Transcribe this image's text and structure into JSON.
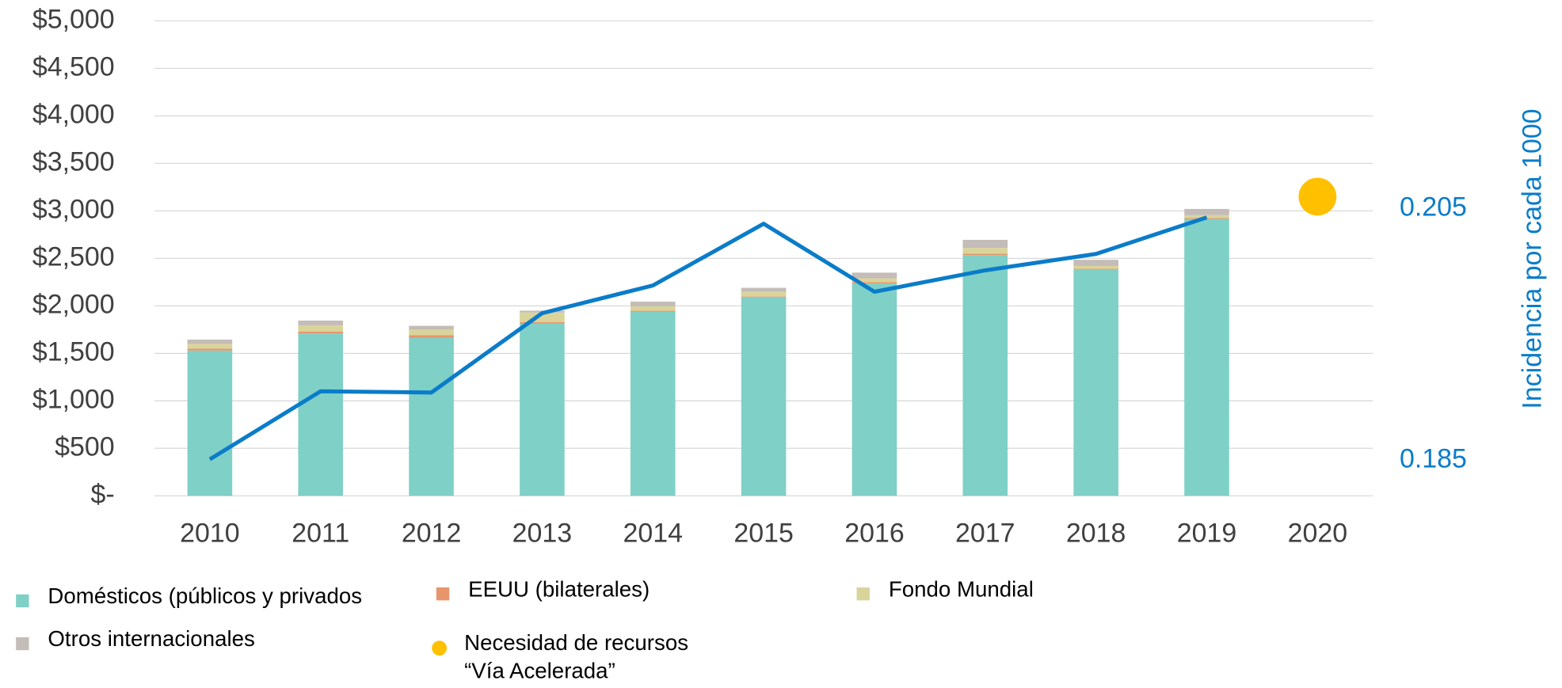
{
  "chart_data": {
    "type": "bar",
    "stacked": true,
    "categories": [
      "2010",
      "2011",
      "2012",
      "2013",
      "2014",
      "2015",
      "2016",
      "2017",
      "2018",
      "2019",
      "2020"
    ],
    "series": [
      {
        "name": "Domésticos (públicos y privados",
        "color": "#7fd0c7",
        "values": [
          1530,
          1710,
          1665,
          1815,
          1940,
          2095,
          2235,
          2535,
          2380,
          2915,
          null
        ]
      },
      {
        "name": "EEUU (bilaterales)",
        "color": "#e8956b",
        "values": [
          20,
          20,
          25,
          15,
          10,
          5,
          15,
          15,
          10,
          10,
          null
        ]
      },
      {
        "name": "Fondo Mundial",
        "color": "#d9d49a",
        "values": [
          50,
          65,
          60,
          100,
          45,
          50,
          40,
          60,
          30,
          30,
          null
        ]
      },
      {
        "name": "Otros internacionales",
        "color": "#c4bcb8",
        "values": [
          45,
          50,
          40,
          20,
          50,
          40,
          60,
          85,
          65,
          65,
          null
        ]
      }
    ],
    "need": {
      "name": "Necesidad de recursos “Vía Acelerada”",
      "color": "#ffc000",
      "values": [
        null,
        null,
        null,
        null,
        null,
        null,
        null,
        null,
        null,
        null,
        3150
      ]
    },
    "line": {
      "type": "line",
      "axis": "y2",
      "color": "#0a7cc9",
      "values": [
        0.1851,
        0.1905,
        0.1904,
        0.1967,
        0.1989,
        0.2038,
        0.1984,
        0.2001,
        0.2014,
        0.2043,
        null
      ]
    },
    "ylim": [
      0,
      5000
    ],
    "yticks": [
      {
        "value": 0,
        "label": "$-"
      },
      {
        "value": 500,
        "label": "$500"
      },
      {
        "value": 1000,
        "label": "$1,000"
      },
      {
        "value": 1500,
        "label": "$1,500"
      },
      {
        "value": 2000,
        "label": "$2,000"
      },
      {
        "value": 2500,
        "label": "$2,500"
      },
      {
        "value": 3000,
        "label": "$3,000"
      },
      {
        "value": 3500,
        "label": "$3,500"
      },
      {
        "value": 4000,
        "label": "$4,000"
      },
      {
        "value": 4500,
        "label": "$4,500"
      },
      {
        "value": 5000,
        "label": "$5,000"
      }
    ],
    "y2lim": [
      0.1822,
      0.2199
    ],
    "y2ticks": [
      0.185,
      0.205
    ],
    "y2_label": "Incidencia por cada 1000",
    "grid": true
  }
}
